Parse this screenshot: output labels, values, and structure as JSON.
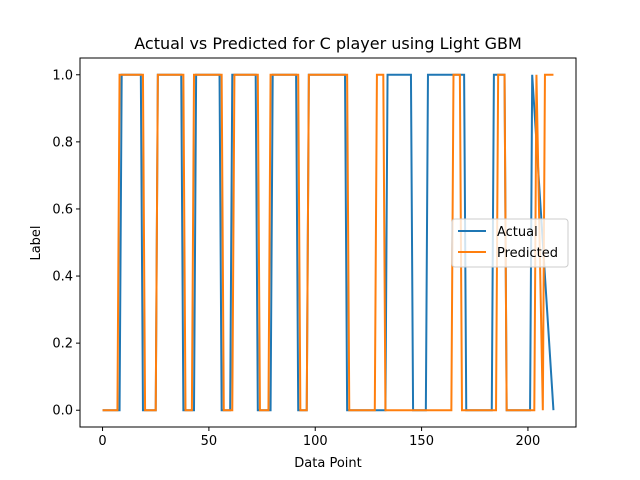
{
  "chart_data": {
    "type": "line",
    "title": "Actual vs Predicted for C player using Light GBM",
    "xlabel": "Data Point",
    "ylabel": "Label",
    "xlim": [
      -10.6,
      222.6
    ],
    "ylim": [
      -0.05,
      1.05
    ],
    "x_ticks": [
      0,
      50,
      100,
      150,
      200
    ],
    "y_ticks": [
      0.0,
      0.2,
      0.4,
      0.6,
      0.8,
      1.0
    ],
    "grid": false,
    "legend_position": "center-right",
    "series": [
      {
        "name": "Actual",
        "color": "#1f77b4",
        "x": [
          0,
          8,
          9,
          18,
          19,
          25,
          26,
          37,
          38,
          43,
          44,
          55,
          56,
          60,
          61,
          72,
          73,
          79,
          80,
          91,
          92,
          96,
          97,
          114,
          115,
          133,
          134,
          145,
          146,
          152,
          153,
          170,
          171,
          183,
          184,
          189,
          190,
          201,
          202,
          212
        ],
        "values": [
          0,
          0,
          1,
          1,
          0,
          0,
          1,
          1,
          0,
          0,
          1,
          1,
          0,
          0,
          1,
          1,
          0,
          0,
          1,
          1,
          0,
          0,
          1,
          1,
          0,
          0,
          1,
          1,
          0,
          0,
          1,
          1,
          0,
          0,
          1,
          1,
          0,
          0,
          1,
          0
        ]
      },
      {
        "name": "Predicted",
        "color": "#ff7f0e",
        "x": [
          0,
          7,
          8,
          19,
          20,
          25,
          26,
          38,
          39,
          42,
          43,
          56,
          57,
          61,
          62,
          73,
          74,
          78,
          79,
          92,
          93,
          96,
          97,
          115,
          116,
          128,
          129,
          132,
          133,
          164,
          165,
          168,
          169,
          185,
          186,
          189,
          190,
          203,
          204,
          207,
          208,
          212
        ],
        "values": [
          0,
          0,
          1,
          1,
          0,
          0,
          1,
          1,
          0,
          0,
          1,
          1,
          0,
          0,
          1,
          1,
          0,
          0,
          1,
          1,
          0,
          0,
          1,
          1,
          0,
          0,
          1,
          1,
          0,
          0,
          1,
          1,
          0,
          0,
          1,
          1,
          0,
          0,
          1,
          0,
          1,
          1
        ]
      }
    ]
  }
}
